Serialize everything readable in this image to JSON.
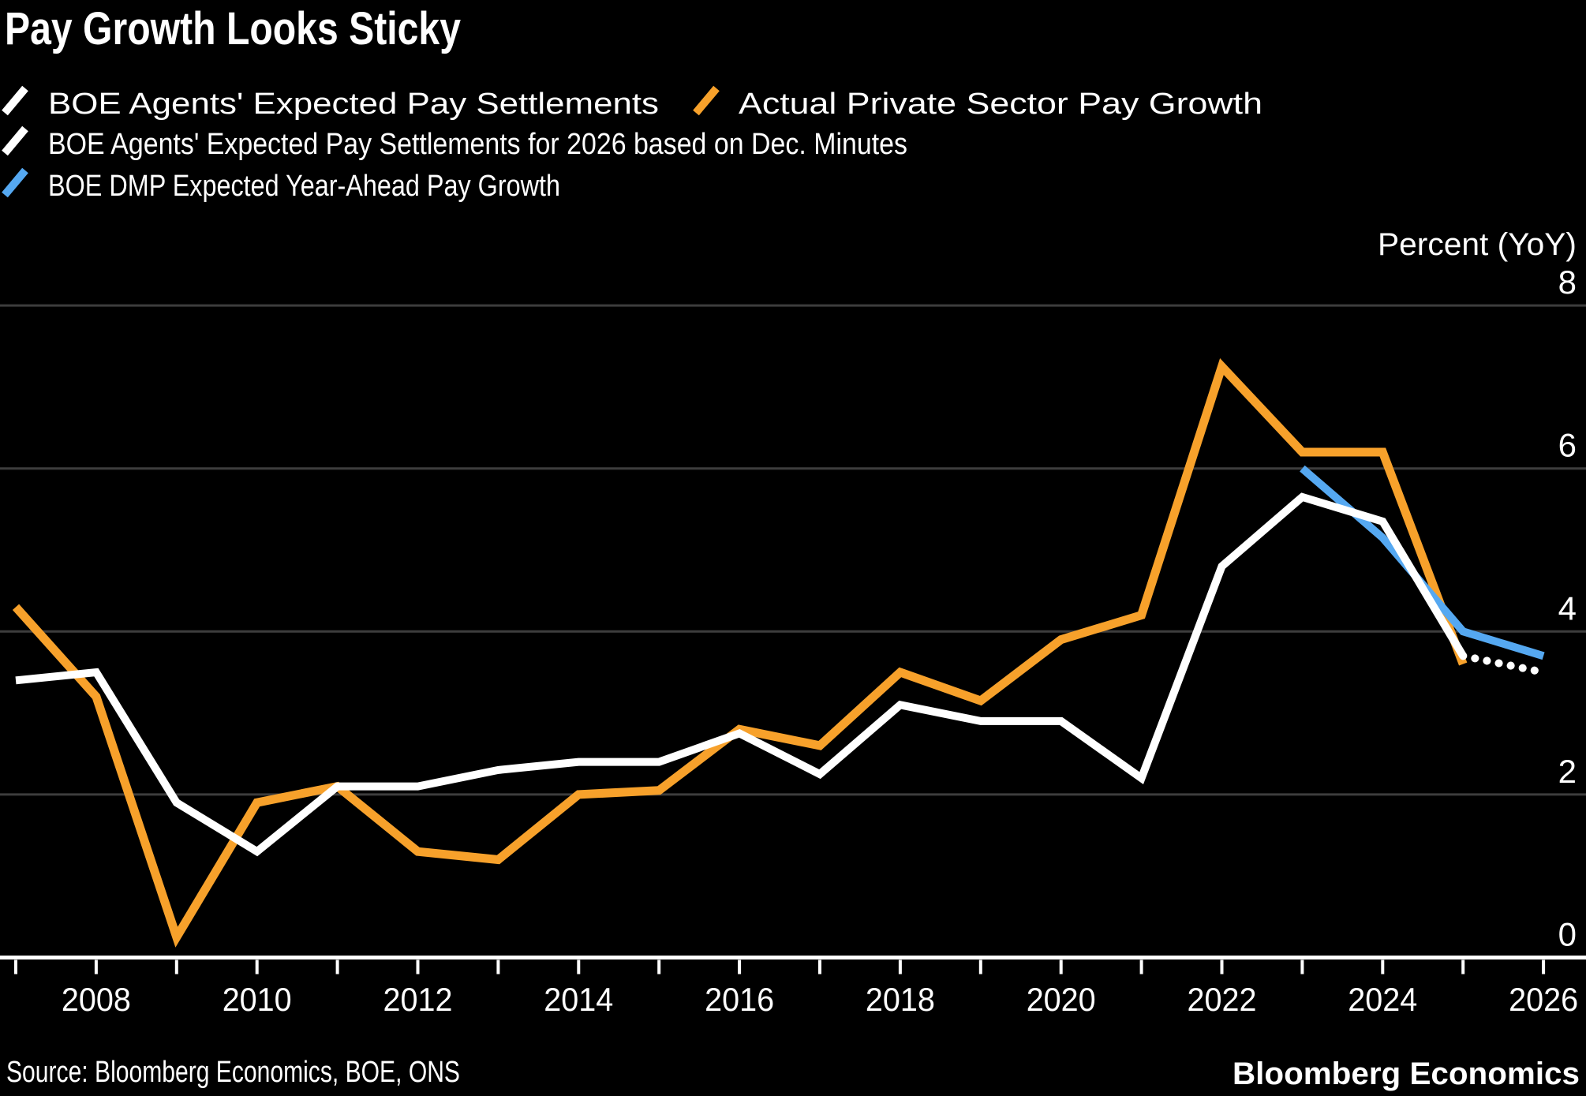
{
  "header": {
    "title": "Pay Growth Looks Sticky"
  },
  "legend": {
    "items": [
      {
        "label": "BOE Agents' Expected Pay Settlements",
        "color": "#ffffff"
      },
      {
        "label": "Actual Private Sector Pay Growth",
        "color": "#f7a12b"
      },
      {
        "label": "BOE Agents' Expected Pay Settlements for 2026 based on Dec. Minutes",
        "color": "#ffffff"
      },
      {
        "label": "BOE DMP Expected Year-Ahead Pay Growth",
        "color": "#55a8f1"
      }
    ]
  },
  "axis": {
    "unit_label": "Percent (YoY)",
    "y_ticks": [
      0,
      2,
      4,
      6,
      8
    ],
    "y_gridlines": [
      2,
      4,
      6,
      8
    ],
    "x_tick_years": [
      2007,
      2008,
      2009,
      2010,
      2011,
      2012,
      2013,
      2014,
      2015,
      2016,
      2017,
      2018,
      2019,
      2020,
      2021,
      2022,
      2023,
      2024,
      2025,
      2026
    ],
    "x_label_years": [
      2008,
      2010,
      2012,
      2014,
      2016,
      2018,
      2020,
      2022,
      2024,
      2026
    ]
  },
  "footer": {
    "source": "Source: Bloomberg Economics, BOE, ONS",
    "brand": "Bloomberg Economics"
  },
  "colors": {
    "background": "#000000",
    "gridline": "#3d3d3d",
    "axis_line": "#ffffff",
    "white_series": "#ffffff",
    "orange_series": "#f7a12b",
    "blue_series": "#55a8f1"
  },
  "chart_data": {
    "type": "line",
    "title": "Pay Growth Looks Sticky",
    "ylabel": "Percent (YoY)",
    "ylim": [
      0,
      8
    ],
    "xlim": [
      2006.8,
      2026.5
    ],
    "grid": "horizontal",
    "legend_position": "top-left",
    "series": [
      {
        "name": "Actual Private Sector Pay Growth",
        "color": "#f7a12b",
        "style": "solid",
        "width": 11,
        "x": [
          2007,
          2008,
          2009,
          2010,
          2011,
          2012,
          2013,
          2014,
          2015,
          2016,
          2017,
          2018,
          2019,
          2020,
          2021,
          2022,
          2023,
          2024,
          2025
        ],
        "values": [
          4.3,
          3.2,
          0.25,
          1.9,
          2.1,
          1.3,
          1.2,
          2.0,
          2.05,
          2.8,
          2.6,
          3.5,
          3.15,
          3.9,
          4.2,
          7.25,
          6.2,
          6.2,
          3.6
        ]
      },
      {
        "name": "BOE DMP Expected Year-Ahead Pay Growth",
        "color": "#55a8f1",
        "style": "solid",
        "width": 10,
        "x": [
          2023,
          2024,
          2025,
          2026
        ],
        "values": [
          6.0,
          5.15,
          4.0,
          3.7
        ]
      },
      {
        "name": "BOE Agents' Expected Pay Settlements",
        "color": "#ffffff",
        "style": "solid",
        "width": 10,
        "x": [
          2007,
          2008,
          2009,
          2010,
          2011,
          2012,
          2013,
          2014,
          2015,
          2016,
          2017,
          2018,
          2019,
          2020,
          2021,
          2022,
          2023,
          2024,
          2025
        ],
        "values": [
          3.4,
          3.5,
          1.9,
          1.3,
          2.1,
          2.1,
          2.3,
          2.4,
          2.4,
          2.75,
          2.25,
          3.1,
          2.9,
          2.9,
          2.2,
          4.8,
          5.65,
          5.35,
          3.7
        ]
      },
      {
        "name": "BOE Agents' Expected Pay Settlements for 2026 based on Dec. Minutes",
        "color": "#ffffff",
        "style": "dotted",
        "width": 10,
        "x": [
          2025,
          2026
        ],
        "values": [
          3.7,
          3.5
        ]
      }
    ]
  }
}
